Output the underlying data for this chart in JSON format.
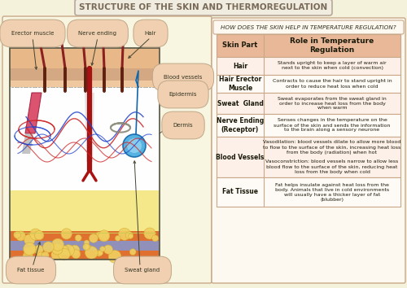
{
  "title": "STRUCTURE OF THE SKIN AND THERMOREGULATION",
  "bg_color": "#f5f2dc",
  "title_bg": "#f0ece0",
  "title_border": "#b8a898",
  "left_panel_bg": "#f8f5e0",
  "right_panel_bg": "#fdf8f0",
  "right_question": "HOW DOES THE SKIN HELP IN TEMPERATURE REGULATION?",
  "table_header_bg": "#e8b898",
  "table_row_bg": "#fdf0e8",
  "table_alt_bg": "#fefaf5",
  "table_border": "#c8a888",
  "label_bg": "#f0d0b0",
  "label_border": "#c0a888",
  "skin_tan": "#d4a882",
  "skin_light": "#f0c8a0",
  "dermis_bg": "#ffffff",
  "fat_bg": "#f5e88a",
  "band_orange": "#e07030",
  "band_purple": "#9090bb",
  "hair_color": "#8B2020",
  "muscle_color": "#e05070",
  "vessel_red": "#cc2222",
  "vessel_blue": "#3355cc",
  "sweat_blue": "#44aadd",
  "nerve_gray": "#999988",
  "table_rows": [
    {
      "part": "Hair",
      "role": "Stands upright to keep a layer of warm air\nnext to the skin when cold (convection)"
    },
    {
      "part": "Hair Erector\nMuscle",
      "role": "Contracts to cause the hair to stand upright in\norder to reduce heat loss when cold"
    },
    {
      "part": "Sweat  Gland",
      "role": "Sweat evaporates from the sweat gland in\norder to increase heat loss from the body\nwhen warm"
    },
    {
      "part": "Nerve Ending\n(Receptor)",
      "role": "Senses changes in the temperature on the\nsurface of the skin and sends the information\nto the brain along a sensory neurone"
    },
    {
      "part": "Blood Vessels",
      "role": "Vasodilation: blood vessels dilate to allow more blood\nto flow to the surface of the skin, increasing heat loss\nfrom the body (radiation) when hot\n\nVasoconstriction: blood vessels narrow to allow less\nblood flow to the surface of the skin, reducing heat\nloss from the body when cold"
    },
    {
      "part": "Fat Tissue",
      "role": "Fat helps insulate against heat loss from the\nbody. Animals that live in cold environments\nwill usually have a thicker layer of fat\n(blubber)"
    }
  ]
}
